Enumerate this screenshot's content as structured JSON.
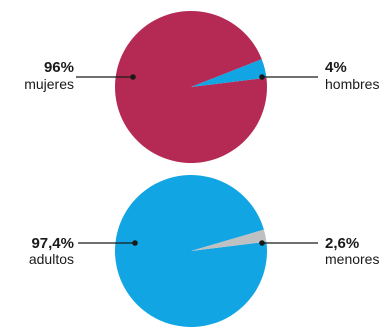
{
  "colors": {
    "magenta": "#b42a55",
    "blue": "#11a5e3",
    "gray": "#bfc0c2",
    "text": "#1a1a1a"
  },
  "chart_data": [
    {
      "type": "pie",
      "slices": [
        {
          "name": "mujeres",
          "value": 96,
          "label": "96%",
          "color": "#b42a55"
        },
        {
          "name": "hombres",
          "value": 4,
          "label": "4%",
          "color": "#11a5e3"
        }
      ]
    },
    {
      "type": "pie",
      "slices": [
        {
          "name": "adultos",
          "value": 97.4,
          "label": "97,4%",
          "color": "#11a5e3"
        },
        {
          "name": "menores",
          "value": 2.6,
          "label": "2,6%",
          "color": "#bfc0c2"
        }
      ]
    }
  ]
}
